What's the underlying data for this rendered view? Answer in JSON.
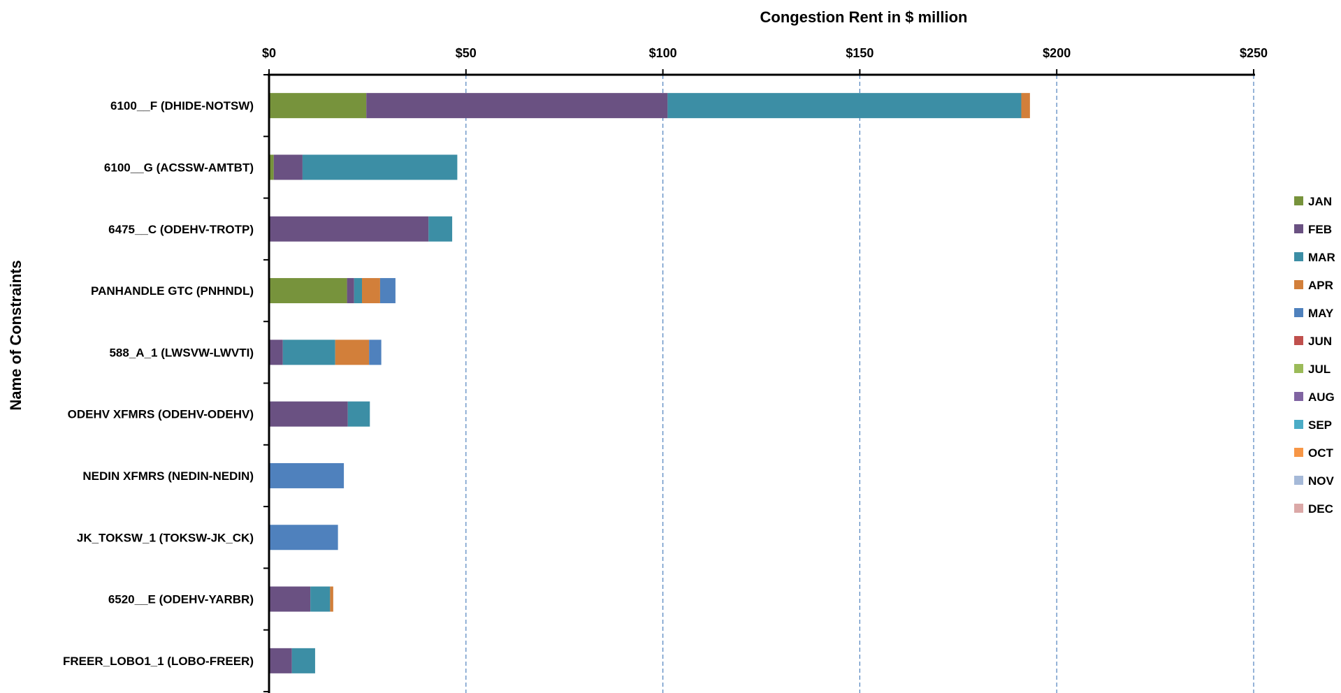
{
  "chart_data": {
    "type": "bar",
    "orientation": "horizontal",
    "stacked": true,
    "title": "Congestion Rent in $ million",
    "xlabel": "Congestion Rent in $ million",
    "ylabel": "Name of Constraints",
    "xlim": [
      0,
      250
    ],
    "x_ticks": [
      0,
      50,
      100,
      150,
      200,
      250
    ],
    "x_tick_labels": [
      "$0",
      "$50",
      "$100",
      "$150",
      "$200",
      "$250"
    ],
    "x_axis_position": "top",
    "grid": "vertical dashed",
    "legend_position": "right",
    "categories": [
      "6100__F (DHIDE-NOTSW)",
      "6100__G (ACSSW-AMTBT)",
      "6475__C (ODEHV-TROTP)",
      "PANHANDLE GTC (PNHNDL)",
      "588_A_1 (LWSVW-LWVTI)",
      "ODEHV XFMRS (ODEHV-ODEHV)",
      "NEDIN XFMRS (NEDIN-NEDIN)",
      "JK_TOKSW_1 (TOKSW-JK_CK)",
      "6520__E (ODEHV-YARBR)",
      "FREER_LOBO1_1 (LOBO-FREER)"
    ],
    "series": [
      {
        "name": "JAN",
        "color": "#77933c",
        "values": [
          24.7,
          1.2,
          0,
          19.8,
          0,
          0,
          0,
          0,
          0,
          0
        ]
      },
      {
        "name": "FEB",
        "color": "#6a5182",
        "values": [
          76.5,
          7.3,
          40.5,
          1.8,
          3.5,
          20.0,
          0,
          0,
          10.5,
          5.8
        ]
      },
      {
        "name": "MAR",
        "color": "#3c8ea5",
        "values": [
          89.8,
          39.3,
          6.0,
          2.0,
          13.3,
          5.6,
          0,
          0,
          5.0,
          5.9
        ]
      },
      {
        "name": "APR",
        "color": "#d27f3a",
        "values": [
          2.2,
          0,
          0,
          4.6,
          8.6,
          0,
          0,
          0,
          0.8,
          0
        ]
      },
      {
        "name": "MAY",
        "color": "#4f81bd",
        "values": [
          0,
          0,
          0,
          3.9,
          3.1,
          0,
          19.0,
          17.5,
          0,
          0
        ]
      },
      {
        "name": "JUN",
        "color": "#c0504d",
        "values": [
          0,
          0,
          0,
          0,
          0,
          0,
          0,
          0,
          0,
          0
        ]
      },
      {
        "name": "JUL",
        "color": "#9bbb59",
        "values": [
          0,
          0,
          0,
          0,
          0,
          0,
          0,
          0,
          0,
          0
        ]
      },
      {
        "name": "AUG",
        "color": "#8064a2",
        "values": [
          0,
          0,
          0,
          0,
          0,
          0,
          0,
          0,
          0,
          0
        ]
      },
      {
        "name": "SEP",
        "color": "#4bacc6",
        "values": [
          0,
          0,
          0,
          0,
          0,
          0,
          0,
          0,
          0,
          0
        ]
      },
      {
        "name": "OCT",
        "color": "#f79646",
        "values": [
          0,
          0,
          0,
          0,
          0,
          0,
          0,
          0,
          0,
          0
        ]
      },
      {
        "name": "NOV",
        "color": "#a5b9d8",
        "values": [
          0,
          0,
          0,
          0,
          0,
          0,
          0,
          0,
          0,
          0
        ]
      },
      {
        "name": "DEC",
        "color": "#dba8a7",
        "values": [
          0,
          0,
          0,
          0,
          0,
          0,
          0,
          0,
          0,
          0
        ]
      }
    ]
  }
}
